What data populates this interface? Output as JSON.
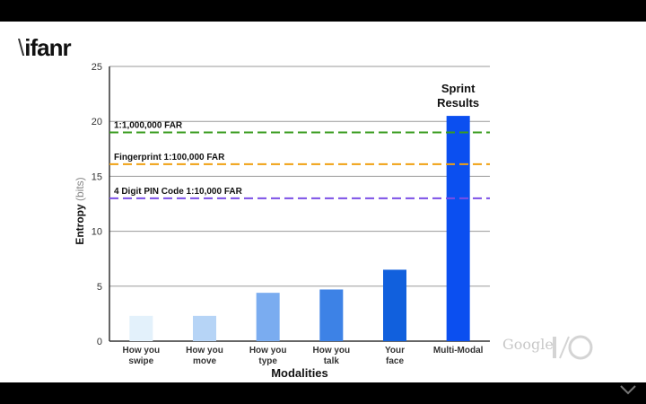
{
  "branding": {
    "logo_text": "ifanr",
    "watermark_text": "Google"
  },
  "chart_data": {
    "type": "bar",
    "xlabel": "Modalities",
    "ylabel": "Entropy",
    "ylabel_unit": "(bits)",
    "ylim": [
      0,
      25
    ],
    "yticks": [
      0,
      5,
      10,
      15,
      20,
      25
    ],
    "grid": true,
    "categories": [
      [
        "How you",
        "swipe"
      ],
      [
        "How you",
        "move"
      ],
      [
        "How you",
        "type"
      ],
      [
        "How you",
        "talk"
      ],
      [
        "Your",
        "face"
      ],
      [
        "Multi-Modal"
      ]
    ],
    "values": [
      2.3,
      2.3,
      4.4,
      4.7,
      6.5,
      20.5
    ],
    "bar_colors": [
      "#e3f1fb",
      "#b6d4f6",
      "#7aacf0",
      "#3d82e6",
      "#1160dd",
      "#0b4ff0"
    ],
    "annotations": [
      {
        "text": "Sprint",
        "text2": "Results",
        "category_index": 5
      }
    ],
    "reference_lines": [
      {
        "label": "1:1,000,000 FAR",
        "value": 19.0,
        "color": "#3a9c1f"
      },
      {
        "label": "Fingerprint 1:100,000 FAR",
        "value": 16.1,
        "color": "#f0a012"
      },
      {
        "label": "4 Digit PIN Code 1:10,000 FAR",
        "value": 13.0,
        "color": "#7b4fe6"
      }
    ]
  }
}
